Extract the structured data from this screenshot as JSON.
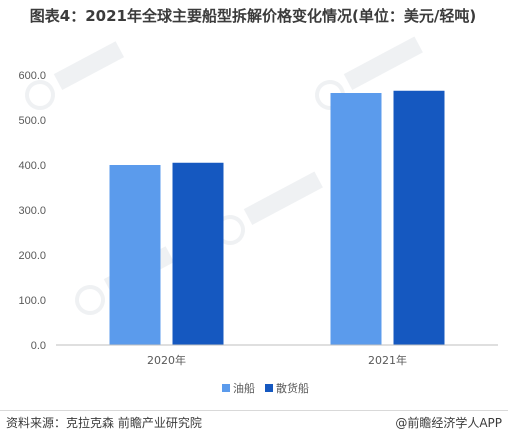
{
  "chart_data": {
    "type": "bar",
    "title": "图表4：2021年全球主要船型拆解价格变化情况(单位：美元/轻吨)",
    "categories": [
      "2020年",
      "2021年"
    ],
    "series": [
      {
        "name": "油船",
        "values": [
          400,
          560
        ],
        "color": "#5b9bec"
      },
      {
        "name": "散货船",
        "values": [
          405,
          565
        ],
        "color": "#1558c0"
      }
    ],
    "yticks": [
      "0.0",
      "100.0",
      "200.0",
      "300.0",
      "400.0",
      "500.0",
      "600.0"
    ],
    "ylim": [
      0,
      600
    ],
    "xlabel": "",
    "ylabel": "",
    "legend_position": "bottom",
    "grid": false
  },
  "footer": {
    "source": "资料来源：克拉克森 前瞻产业研究院",
    "brand": "@前瞻经济学人APP"
  }
}
